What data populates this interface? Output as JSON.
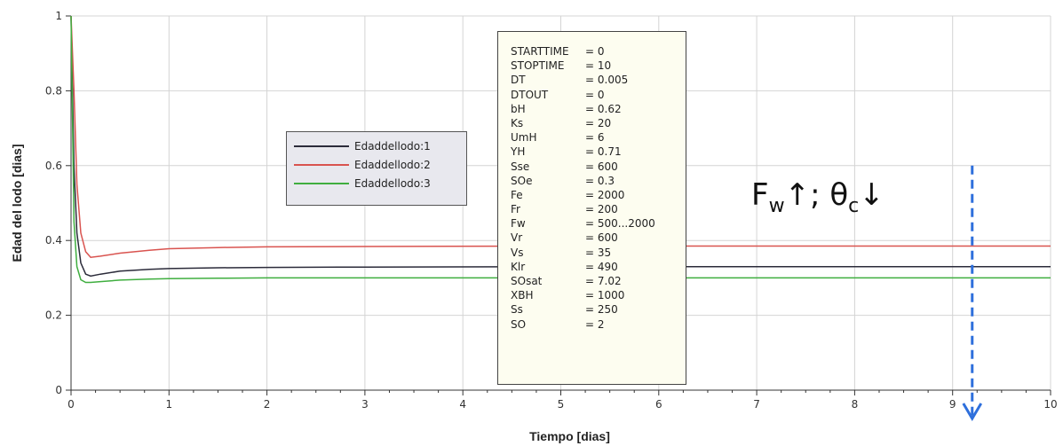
{
  "chart_data": {
    "type": "line",
    "xlabel": "Tiempo [dias]",
    "ylabel": "Edad del lodo [dias]",
    "xlim": [
      0,
      10
    ],
    "ylim": [
      0,
      1
    ],
    "x_ticks": [
      "0",
      "1",
      "2",
      "3",
      "4",
      "5",
      "6",
      "7",
      "8",
      "9",
      "10"
    ],
    "y_ticks": [
      "0",
      "0.2",
      "0.4",
      "0.6",
      "0.8",
      "1"
    ],
    "grid": true,
    "legend_position": "upper-left-center",
    "series": [
      {
        "name": "Edaddellodo:1",
        "color": "#2b2b3a",
        "x": [
          0,
          0.03,
          0.06,
          0.1,
          0.15,
          0.2,
          0.3,
          0.5,
          0.8,
          1,
          1.5,
          2,
          3,
          5,
          10
        ],
        "y": [
          1,
          0.6,
          0.42,
          0.34,
          0.31,
          0.305,
          0.31,
          0.318,
          0.323,
          0.325,
          0.327,
          0.328,
          0.329,
          0.33,
          0.33
        ]
      },
      {
        "name": "Edaddellodo:2",
        "color": "#d9534f",
        "x": [
          0,
          0.03,
          0.06,
          0.1,
          0.15,
          0.2,
          0.3,
          0.5,
          0.8,
          1,
          1.5,
          2,
          3,
          5,
          10
        ],
        "y": [
          1,
          0.8,
          0.55,
          0.42,
          0.37,
          0.355,
          0.358,
          0.366,
          0.374,
          0.378,
          0.381,
          0.383,
          0.384,
          0.385,
          0.385
        ]
      },
      {
        "name": "Edaddellodo:3",
        "color": "#3fae3f",
        "x": [
          0,
          0.03,
          0.06,
          0.1,
          0.15,
          0.2,
          0.3,
          0.5,
          0.8,
          1,
          1.5,
          2,
          3,
          5,
          10
        ],
        "y": [
          1,
          0.45,
          0.33,
          0.295,
          0.288,
          0.288,
          0.29,
          0.294,
          0.297,
          0.298,
          0.299,
          0.3,
          0.3,
          0.3,
          0.3
        ]
      }
    ],
    "marker_x": 9.2,
    "marker_y_top": 0.6,
    "marker_color": "#2e6fdc"
  },
  "parameters": [
    {
      "name": "STARTTIME",
      "value": "= 0"
    },
    {
      "name": "STOPTIME",
      "value": "= 10"
    },
    {
      "name": "DT",
      "value": "= 0.005"
    },
    {
      "name": "DTOUT",
      "value": "= 0"
    },
    {
      "name": "bH",
      "value": "= 0.62"
    },
    {
      "name": "Ks",
      "value": "= 20"
    },
    {
      "name": "UmH",
      "value": "= 6"
    },
    {
      "name": "YH",
      "value": "= 0.71"
    },
    {
      "name": "Sse",
      "value": "= 600"
    },
    {
      "name": "SOe",
      "value": "= 0.3"
    },
    {
      "name": "Fe",
      "value": "= 2000"
    },
    {
      "name": "Fr",
      "value": "= 200"
    },
    {
      "name": "Fw",
      "value": "= 500...2000"
    },
    {
      "name": "Vr",
      "value": "= 600"
    },
    {
      "name": "Vs",
      "value": "= 35"
    },
    {
      "name": "Klr",
      "value": "= 490"
    },
    {
      "name": "SOsat",
      "value": "= 7.02"
    },
    {
      "name": "XBH",
      "value": "= 1000"
    },
    {
      "name": "Ss",
      "value": "= 250"
    },
    {
      "name": "SO",
      "value": "= 2"
    }
  ],
  "annotation": {
    "f_letter": "F",
    "f_sub": "w",
    "up_arrow": "↑",
    "separator": "; ",
    "theta": "θ",
    "theta_sub": "c",
    "down_arrow": "↓"
  }
}
